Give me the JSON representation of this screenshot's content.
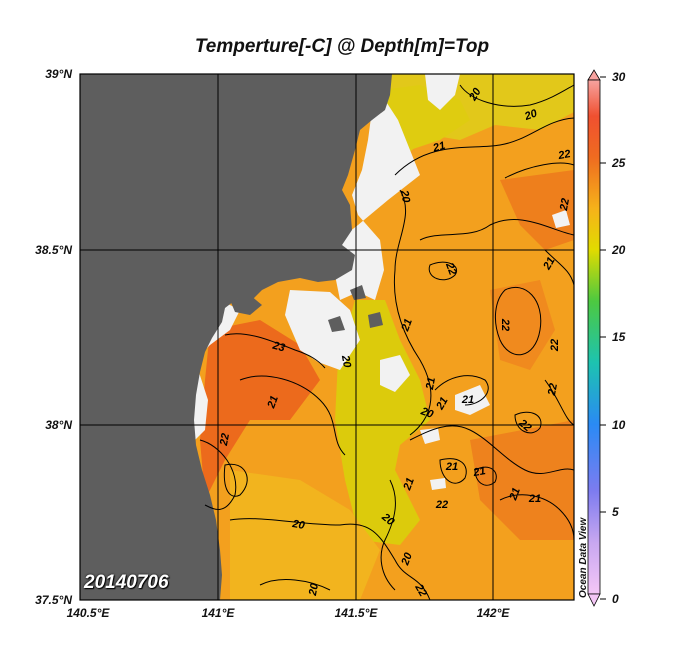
{
  "title": "Temperture[-C] @ Depth[m]=Top",
  "date_label": "20140706",
  "watermark": "Ocean Data View",
  "lat_labels": [
    "39°N",
    "38.5°N",
    "38°N",
    "37.5°N"
  ],
  "lon_labels": [
    "140.5°E",
    "141°E",
    "141.5°E",
    "142°E"
  ],
  "colorbar": {
    "labels": [
      "30",
      "25",
      "20",
      "15",
      "10",
      "5",
      "0"
    ],
    "min": 0,
    "max": 30
  },
  "contour_labels": [
    "20",
    "20",
    "21",
    "22",
    "20",
    "22",
    "22",
    "21",
    "22",
    "22",
    "21",
    "23",
    "20",
    "21",
    "21",
    "21",
    "20",
    "21",
    "22",
    "22",
    "21",
    "21",
    "21",
    "21",
    "20",
    "20",
    "20",
    "22",
    "21",
    "22",
    "22",
    "20"
  ],
  "colors": {
    "land": "#5e5e5e",
    "no_data": "#f2f2f2",
    "warm": "#ec6a1c",
    "mid": "#f5a41f",
    "cool": "#d9d000"
  }
}
